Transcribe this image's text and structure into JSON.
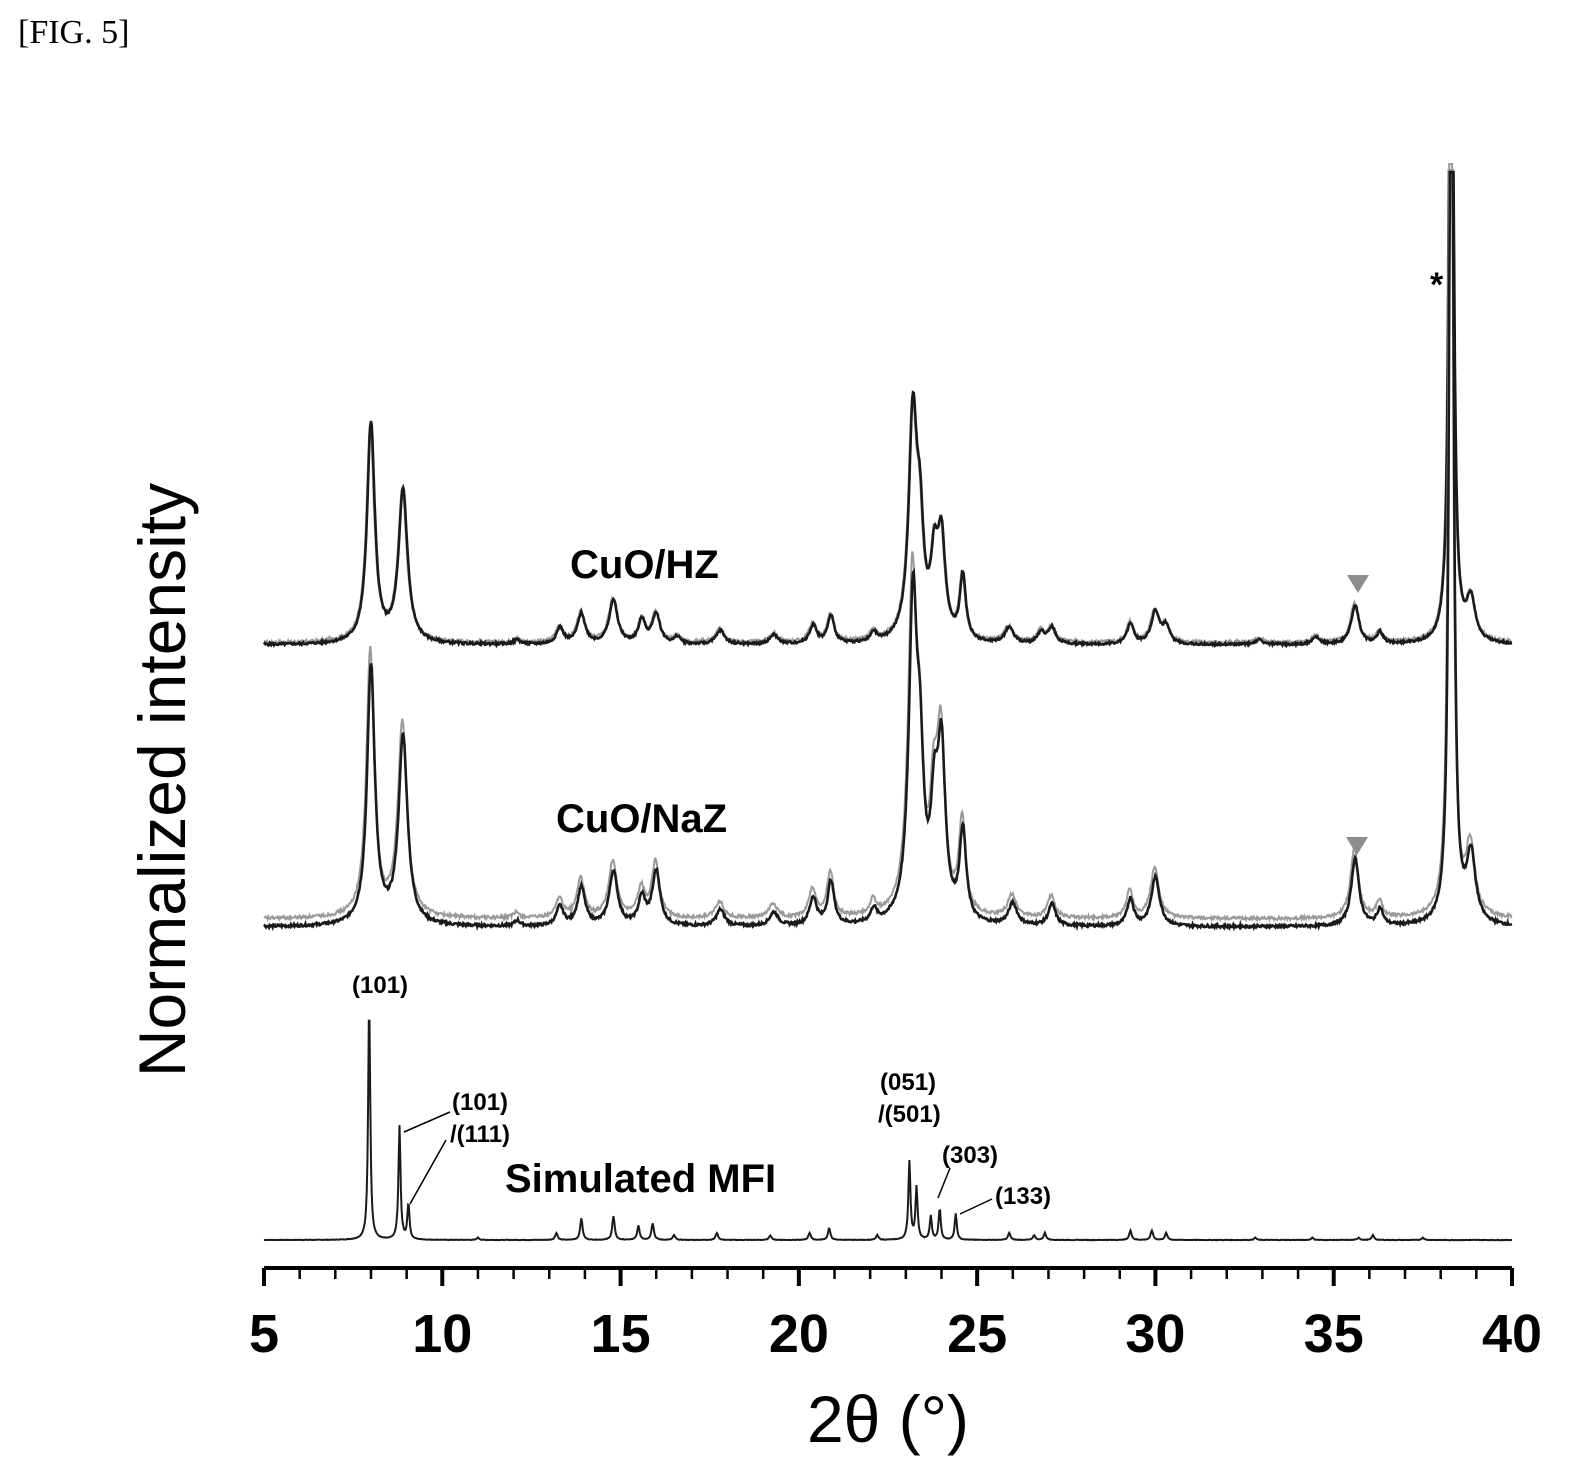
{
  "figure_label": "[FIG. 5]",
  "chart_data": {
    "type": "line",
    "xlabel": "2θ (°)",
    "ylabel": "Normalized intensity",
    "xlim": [
      5,
      40
    ],
    "x_ticks": [
      "5",
      "10",
      "15",
      "20",
      "25",
      "30",
      "35",
      "40"
    ],
    "y_ticks": [],
    "grid": false,
    "colors": {
      "dark": "#1a1a1a",
      "light": "#9a9a9a",
      "marker": "#8c8c8c"
    },
    "series": [
      {
        "name": "CuO/HZ",
        "peaks": [
          [
            8.0,
            0.95,
            0.13
          ],
          [
            8.9,
            0.66,
            0.15
          ],
          [
            12.1,
            0.02,
            0.1
          ],
          [
            13.3,
            0.07,
            0.12
          ],
          [
            13.9,
            0.13,
            0.13
          ],
          [
            14.8,
            0.19,
            0.14
          ],
          [
            15.6,
            0.1,
            0.12
          ],
          [
            16.0,
            0.13,
            0.13
          ],
          [
            16.6,
            0.03,
            0.1
          ],
          [
            17.8,
            0.06,
            0.14
          ],
          [
            19.3,
            0.04,
            0.14
          ],
          [
            20.4,
            0.08,
            0.12
          ],
          [
            20.9,
            0.12,
            0.11
          ],
          [
            22.1,
            0.04,
            0.1
          ],
          [
            23.2,
            0.96,
            0.14
          ],
          [
            23.4,
            0.4,
            0.12
          ],
          [
            23.8,
            0.3,
            0.12
          ],
          [
            24.0,
            0.42,
            0.13
          ],
          [
            24.6,
            0.28,
            0.1
          ],
          [
            25.9,
            0.07,
            0.14
          ],
          [
            26.8,
            0.05,
            0.12
          ],
          [
            27.1,
            0.07,
            0.12
          ],
          [
            29.3,
            0.09,
            0.11
          ],
          [
            30.0,
            0.14,
            0.14
          ],
          [
            30.3,
            0.07,
            0.12
          ],
          [
            32.9,
            0.02,
            0.14
          ],
          [
            34.5,
            0.03,
            0.12
          ],
          [
            35.6,
            0.17,
            0.13
          ],
          [
            36.3,
            0.05,
            0.1
          ],
          [
            38.3,
            4.5,
            0.06
          ],
          [
            38.85,
            0.18,
            0.15
          ]
        ],
        "annotation": "▼ at 35.6"
      },
      {
        "name": "CuO/NaZ",
        "peaks": [
          [
            8.0,
            0.95,
            0.13
          ],
          [
            8.9,
            0.69,
            0.15
          ],
          [
            12.1,
            0.02,
            0.1
          ],
          [
            13.3,
            0.07,
            0.12
          ],
          [
            13.9,
            0.14,
            0.13
          ],
          [
            14.8,
            0.2,
            0.14
          ],
          [
            15.6,
            0.1,
            0.12
          ],
          [
            16.0,
            0.2,
            0.13
          ],
          [
            17.8,
            0.06,
            0.14
          ],
          [
            19.3,
            0.05,
            0.14
          ],
          [
            20.4,
            0.1,
            0.12
          ],
          [
            20.9,
            0.16,
            0.11
          ],
          [
            22.1,
            0.05,
            0.1
          ],
          [
            23.2,
            1.15,
            0.14
          ],
          [
            23.4,
            0.45,
            0.12
          ],
          [
            23.8,
            0.35,
            0.12
          ],
          [
            24.0,
            0.6,
            0.13
          ],
          [
            24.6,
            0.33,
            0.11
          ],
          [
            26.0,
            0.08,
            0.14
          ],
          [
            27.1,
            0.08,
            0.12
          ],
          [
            29.3,
            0.1,
            0.11
          ],
          [
            30.0,
            0.18,
            0.14
          ],
          [
            35.6,
            0.25,
            0.13
          ],
          [
            36.3,
            0.06,
            0.1
          ],
          [
            38.3,
            4.5,
            0.06
          ],
          [
            38.85,
            0.25,
            0.15
          ]
        ],
        "annotation": "▼ at 35.6"
      },
      {
        "name": "Simulated MFI",
        "peaks": [
          [
            7.95,
            1.0,
            0.035
          ],
          [
            8.8,
            0.48,
            0.035
          ],
          [
            9.05,
            0.15,
            0.035
          ],
          [
            11.0,
            0.01,
            0.04
          ],
          [
            13.2,
            0.03,
            0.04
          ],
          [
            13.9,
            0.09,
            0.04
          ],
          [
            14.8,
            0.1,
            0.04
          ],
          [
            15.5,
            0.06,
            0.04
          ],
          [
            15.9,
            0.07,
            0.04
          ],
          [
            16.5,
            0.02,
            0.04
          ],
          [
            17.7,
            0.03,
            0.04
          ],
          [
            19.2,
            0.02,
            0.04
          ],
          [
            20.3,
            0.03,
            0.04
          ],
          [
            20.85,
            0.05,
            0.04
          ],
          [
            22.2,
            0.02,
            0.04
          ],
          [
            23.1,
            0.33,
            0.035
          ],
          [
            23.3,
            0.22,
            0.035
          ],
          [
            23.7,
            0.1,
            0.035
          ],
          [
            23.95,
            0.13,
            0.035
          ],
          [
            24.4,
            0.11,
            0.035
          ],
          [
            25.9,
            0.03,
            0.04
          ],
          [
            26.6,
            0.02,
            0.04
          ],
          [
            26.9,
            0.03,
            0.04
          ],
          [
            29.3,
            0.04,
            0.04
          ],
          [
            29.9,
            0.04,
            0.04
          ],
          [
            30.3,
            0.03,
            0.04
          ],
          [
            32.8,
            0.01,
            0.04
          ],
          [
            34.4,
            0.01,
            0.04
          ],
          [
            35.7,
            0.01,
            0.04
          ],
          [
            36.1,
            0.02,
            0.04
          ],
          [
            37.5,
            0.01,
            0.04
          ]
        ]
      }
    ],
    "annotations": {
      "star": "*",
      "hz_label": "CuO/HZ",
      "naz_label": "CuO/NaZ",
      "mfi_label": "Simulated MFI",
      "plane_101": "(101)",
      "plane_101b_1": "(101)",
      "plane_101b_2": "/(111)",
      "plane_051_1": "(051)",
      "plane_051_2": "/(501)",
      "plane_303": "(303)",
      "plane_133": "(133)"
    }
  }
}
